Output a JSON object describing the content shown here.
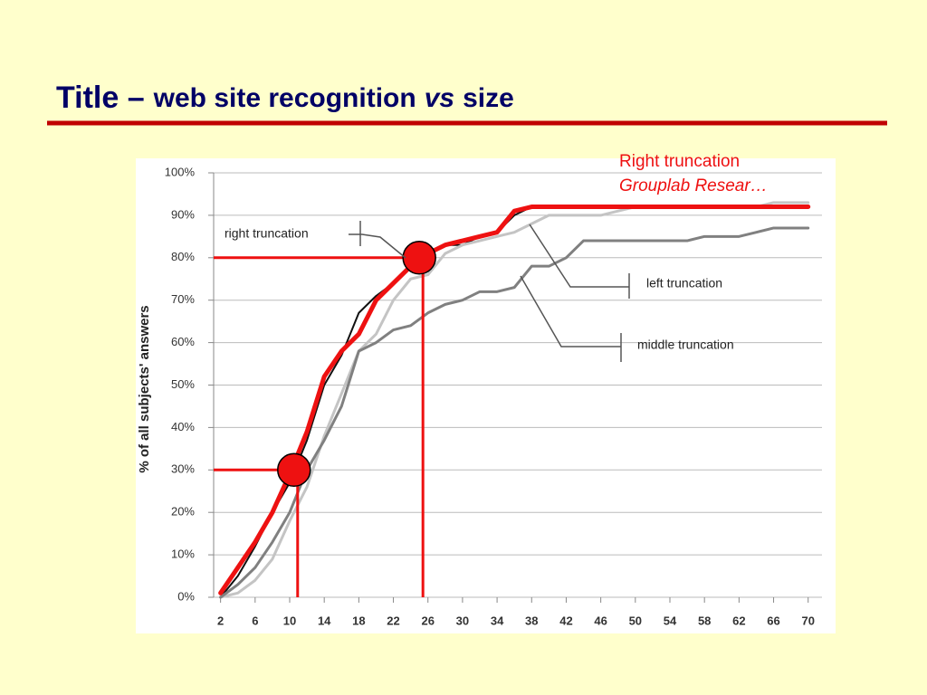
{
  "slide": {
    "title_parts": [
      "Title –",
      "web site recognition",
      "vs",
      "size"
    ],
    "notes": [
      "Right truncation",
      "Grouplab Resear…"
    ]
  },
  "chart_data": {
    "type": "line",
    "y_label": "% of all subjects' answers",
    "x": [
      2,
      4,
      6,
      8,
      10,
      12,
      14,
      16,
      18,
      20,
      22,
      24,
      26,
      28,
      30,
      32,
      34,
      36,
      38,
      40,
      42,
      44,
      46,
      48,
      50,
      52,
      54,
      56,
      58,
      60,
      62,
      64,
      66,
      68,
      70
    ],
    "series": [
      {
        "name": "right truncation",
        "color": "#111111",
        "width": 2,
        "values": [
          0,
          5,
          12,
          20,
          27,
          37,
          50,
          57,
          67,
          71,
          74,
          78,
          81,
          83,
          83,
          85,
          86,
          90,
          92,
          92,
          92,
          92,
          92,
          92,
          92,
          92,
          92,
          92,
          92,
          92,
          92,
          92,
          92,
          92,
          92
        ]
      },
      {
        "name": "left truncation",
        "color": "#c4c4c4",
        "width": 3,
        "values": [
          0,
          1,
          4,
          9,
          18,
          26,
          38,
          48,
          58,
          62,
          70,
          75,
          76,
          81,
          83,
          84,
          85,
          86,
          88,
          90,
          90,
          90,
          90,
          91,
          92,
          92,
          92,
          92,
          92,
          92,
          92,
          92,
          93,
          93,
          93
        ]
      },
      {
        "name": "middle truncation",
        "color": "#808080",
        "width": 3,
        "values": [
          0,
          3,
          7,
          13,
          20,
          30,
          37,
          45,
          58,
          60,
          63,
          64,
          67,
          69,
          70,
          72,
          72,
          73,
          78,
          78,
          80,
          84,
          84,
          84,
          84,
          84,
          84,
          84,
          85,
          85,
          85,
          86,
          87,
          87,
          87
        ]
      },
      {
        "name": "Right truncation",
        "color": "#ee1111",
        "width": 5,
        "values": [
          1,
          7,
          13,
          20,
          29,
          39,
          52,
          58,
          62,
          70,
          74,
          78,
          81,
          83,
          84,
          85,
          86,
          91,
          92,
          92,
          92,
          92,
          92,
          92,
          92,
          92,
          92,
          92,
          92,
          92,
          92,
          92,
          92,
          92,
          92
        ]
      }
    ],
    "highlights": [
      {
        "x": 10.5,
        "y": 30
      },
      {
        "x": 25,
        "y": 80
      }
    ],
    "highlight_color": "#ee1111",
    "xlim": [
      1.2,
      71.6
    ],
    "ylim": [
      0,
      100
    ],
    "xticks": [
      2,
      6,
      10,
      14,
      18,
      22,
      26,
      30,
      34,
      38,
      42,
      46,
      50,
      54,
      58,
      62,
      66,
      70
    ],
    "yticks": [
      {
        "value": 0,
        "label": "0%"
      },
      {
        "value": 10,
        "label": "10%"
      },
      {
        "value": 20,
        "label": "20%"
      },
      {
        "value": 30,
        "label": "30%"
      },
      {
        "value": 40,
        "label": "40%"
      },
      {
        "value": 50,
        "label": "50%"
      },
      {
        "value": 60,
        "label": "60%"
      },
      {
        "value": 70,
        "label": "70%"
      },
      {
        "value": 80,
        "label": "80%"
      },
      {
        "value": 90,
        "label": "90%"
      },
      {
        "value": 100,
        "label": "100%"
      }
    ],
    "grid": true
  }
}
